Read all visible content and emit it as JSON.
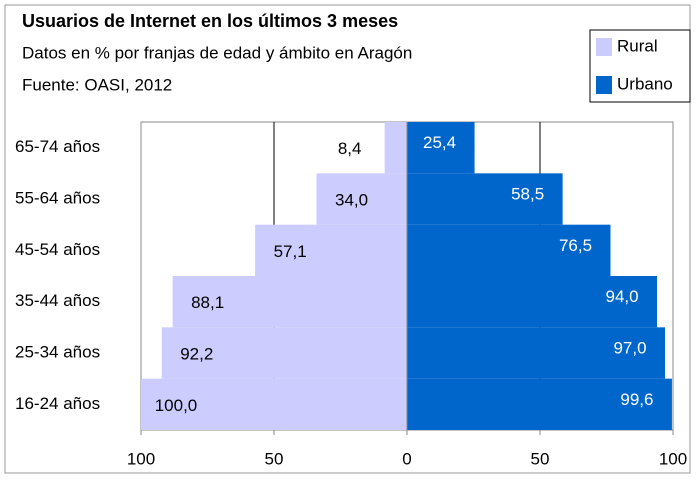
{
  "chart_data": {
    "type": "pyramid",
    "title": "Usuarios de Internet en los últimos 3 meses",
    "subtitle": "Datos en % por franjas de edad y ámbito en Aragón",
    "source": "Fuente: OASI, 2012",
    "categories": [
      "65-74 años",
      "55-64 años",
      "45-54 años",
      "35-44 años",
      "25-34 años",
      "16-24 años"
    ],
    "series": [
      {
        "name": "Rural",
        "color": "#ccccff",
        "values": [
          -8.4,
          -34.0,
          -57.1,
          -88.1,
          -92.2,
          -100.0
        ],
        "value_labels": [
          "8,4",
          "34,0",
          "57,1",
          "88,1",
          "92,2",
          "100,0"
        ]
      },
      {
        "name": "Urbano",
        "color": "#0066cc",
        "values": [
          25.4,
          58.5,
          76.5,
          94.0,
          97.0,
          99.6
        ],
        "value_labels": [
          "25,4",
          "58,5",
          "76,5",
          "94,0",
          "97,0",
          "99,6"
        ]
      }
    ],
    "xlim": [
      -100,
      100
    ],
    "xticks": [
      {
        "value": -100,
        "label": "100"
      },
      {
        "value": -50,
        "label": "50"
      },
      0,
      50,
      100
    ],
    "grid": true,
    "legend": "top-right"
  }
}
